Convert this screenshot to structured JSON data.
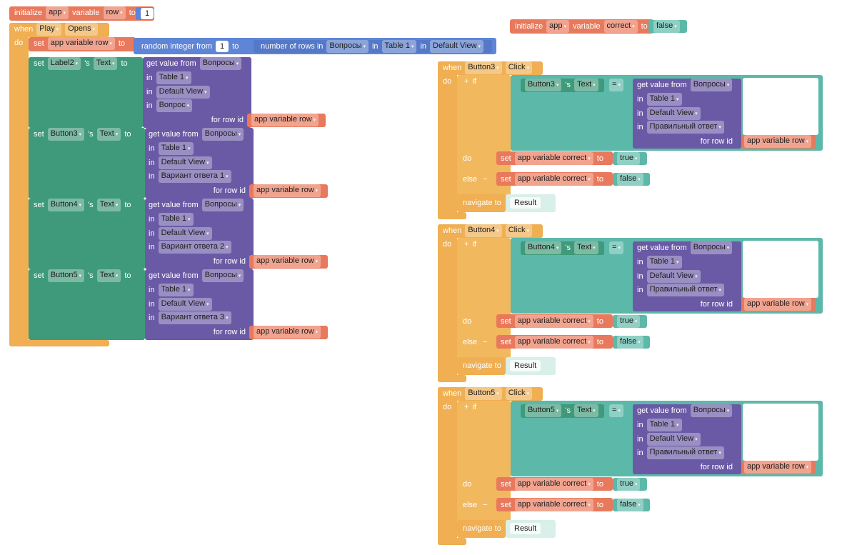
{
  "init_row": {
    "initialize": "initialize",
    "scope": "app",
    "variable": "variable",
    "name": "row",
    "to": "to",
    "value": 1
  },
  "init_correct": {
    "initialize": "initialize",
    "scope": "app",
    "variable": "variable",
    "name": "correct",
    "to": "to",
    "value": "false"
  },
  "play_opens": {
    "when": "when",
    "component": "Play",
    "event": "Opens",
    "do": "do",
    "set_row": {
      "set": "set",
      "variable": "app variable row",
      "to": "to",
      "random": "random integer from",
      "from": 1,
      "to_word": "to",
      "count": "number of rows in",
      "source": "Вопросы",
      "in_table": "in",
      "table": "Table 1",
      "in_view": "in",
      "view": "Default View"
    },
    "setters": [
      {
        "set": "set",
        "component": "Label2",
        "possessive": "'s",
        "property": "Text",
        "to": "to",
        "get": "get value from",
        "source": "Вопросы",
        "in_table": "in",
        "table": "Table 1",
        "in_view": "in",
        "view": "Default View",
        "in_column": "in",
        "column": "Вопрос",
        "for_row": "for row id",
        "row": "app variable row"
      },
      {
        "set": "set",
        "component": "Button3",
        "possessive": "'s",
        "property": "Text",
        "to": "to",
        "get": "get value from",
        "source": "Вопросы",
        "in_table": "in",
        "table": "Table 1",
        "in_view": "in",
        "view": "Default View",
        "in_column": "in",
        "column": "Вариант ответа 1",
        "for_row": "for row id",
        "row": "app variable row"
      },
      {
        "set": "set",
        "component": "Button4",
        "possessive": "'s",
        "property": "Text",
        "to": "to",
        "get": "get value from",
        "source": "Вопросы",
        "in_table": "in",
        "table": "Table 1",
        "in_view": "in",
        "view": "Default View",
        "in_column": "in",
        "column": "Вариант ответа 2",
        "for_row": "for row id",
        "row": "app variable row"
      },
      {
        "set": "set",
        "component": "Button5",
        "possessive": "'s",
        "property": "Text",
        "to": "to",
        "get": "get value from",
        "source": "Вопросы",
        "in_table": "in",
        "table": "Table 1",
        "in_view": "in",
        "view": "Default View",
        "in_column": "in",
        "column": "Вариант ответа 3",
        "for_row": "for row id",
        "row": "app variable row"
      }
    ]
  },
  "click_handlers": [
    {
      "when": "when",
      "component": "Button3",
      "event": "Click",
      "do": "do",
      "add": "+",
      "if": "if",
      "subject": "Button3",
      "possessive": "'s",
      "property": "Text",
      "operator": "=",
      "get": "get value from",
      "source": "Вопросы",
      "in_table": "in",
      "table": "Table 1",
      "in_view": "in",
      "view": "Default View",
      "in_column": "in",
      "column": "Правильный ответ",
      "for_row": "for row id",
      "row": "app variable row",
      "then": "do",
      "set_then": "set",
      "variable_then": "app variable correct",
      "to_then": "to",
      "value_then": "true",
      "else": "else",
      "remove": "−",
      "set_else": "set",
      "variable_else": "app variable correct",
      "to_else": "to",
      "value_else": "false",
      "navigate": "navigate to",
      "screen": "Result"
    },
    {
      "when": "when",
      "component": "Button4",
      "event": "Click",
      "do": "do",
      "add": "+",
      "if": "if",
      "subject": "Button4",
      "possessive": "'s",
      "property": "Text",
      "operator": "=",
      "get": "get value from",
      "source": "Вопросы",
      "in_table": "in",
      "table": "Table 1",
      "in_view": "in",
      "view": "Default View",
      "in_column": "in",
      "column": "Правильный ответ",
      "for_row": "for row id",
      "row": "app variable row",
      "then": "do",
      "set_then": "set",
      "variable_then": "app variable correct",
      "to_then": "to",
      "value_then": "true",
      "else": "else",
      "remove": "−",
      "set_else": "set",
      "variable_else": "app variable correct",
      "to_else": "to",
      "value_else": "false",
      "navigate": "navigate to",
      "screen": "Result"
    },
    {
      "when": "when",
      "component": "Button5",
      "event": "Click",
      "do": "do",
      "add": "+",
      "if": "if",
      "subject": "Button5",
      "possessive": "'s",
      "property": "Text",
      "operator": "=",
      "get": "get value from",
      "source": "Вопросы",
      "in_table": "in",
      "table": "Table 1",
      "in_view": "in",
      "view": "Default View",
      "in_column": "in",
      "column": "Правильный ответ",
      "for_row": "for row id",
      "row": "app variable row",
      "then": "do",
      "set_then": "set",
      "variable_then": "app variable correct",
      "to_then": "to",
      "value_then": "true",
      "else": "else",
      "remove": "−",
      "set_else": "set",
      "variable_else": "app variable correct",
      "to_else": "to",
      "value_else": "false",
      "navigate": "navigate to",
      "screen": "Result"
    }
  ]
}
